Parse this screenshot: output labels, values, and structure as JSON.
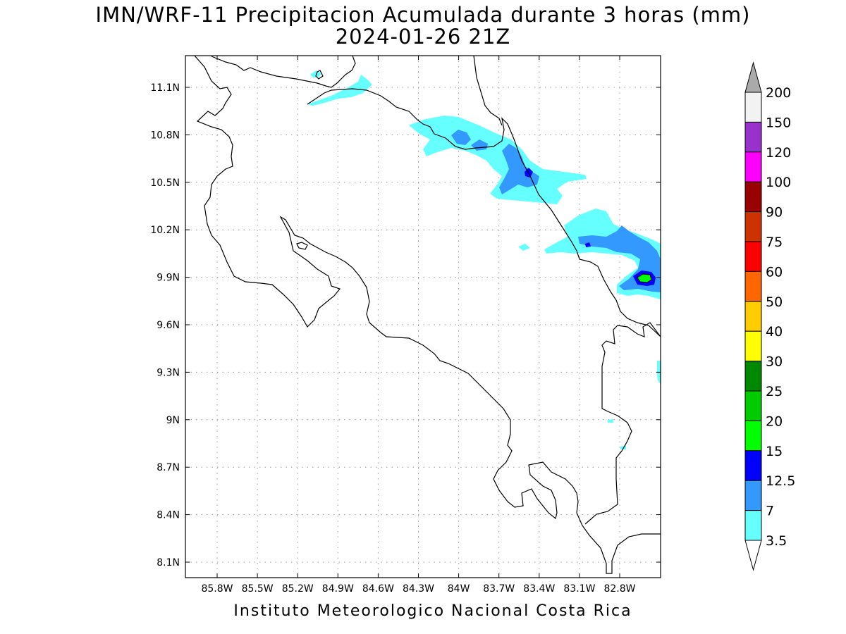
{
  "header": {
    "title_line1": "IMN/WRF-11 Precipitacion Acumulada durante 3 horas (mm)",
    "title_line2": "2024-01-26 21Z"
  },
  "footer": {
    "credit": "Instituto Meteorologico Nacional Costa Rica"
  },
  "map": {
    "x_ticks": [
      "85.8W",
      "85.5W",
      "85.2W",
      "84.9W",
      "84.6W",
      "84.3W",
      "84W",
      "83.7W",
      "83.4W",
      "83.1W",
      "82.8W"
    ],
    "y_ticks": [
      "11.1N",
      "10.8N",
      "10.5N",
      "10.2N",
      "9.9N",
      "9.6N",
      "9.3N",
      "9N",
      "8.7N",
      "8.4N",
      "8.1N"
    ],
    "gridlines": "dotted"
  },
  "colorbar": {
    "labels": [
      "200",
      "150",
      "120",
      "100",
      "90",
      "75",
      "60",
      "50",
      "40",
      "30",
      "25",
      "20",
      "15",
      "12.5",
      "7",
      "3.5"
    ],
    "colors": [
      "#f2f2f2",
      "#9932cc",
      "#ff00ff",
      "#990000",
      "#cc3300",
      "#ff0000",
      "#ff6600",
      "#ffcc00",
      "#ffff00",
      "#008800",
      "#00cc00",
      "#00ff00",
      "#0000ff",
      "#3399ff",
      "#66ffff"
    ],
    "top_arrow_color": "#aaaaaa",
    "bottom_arrow_color": "#ffffff"
  }
}
